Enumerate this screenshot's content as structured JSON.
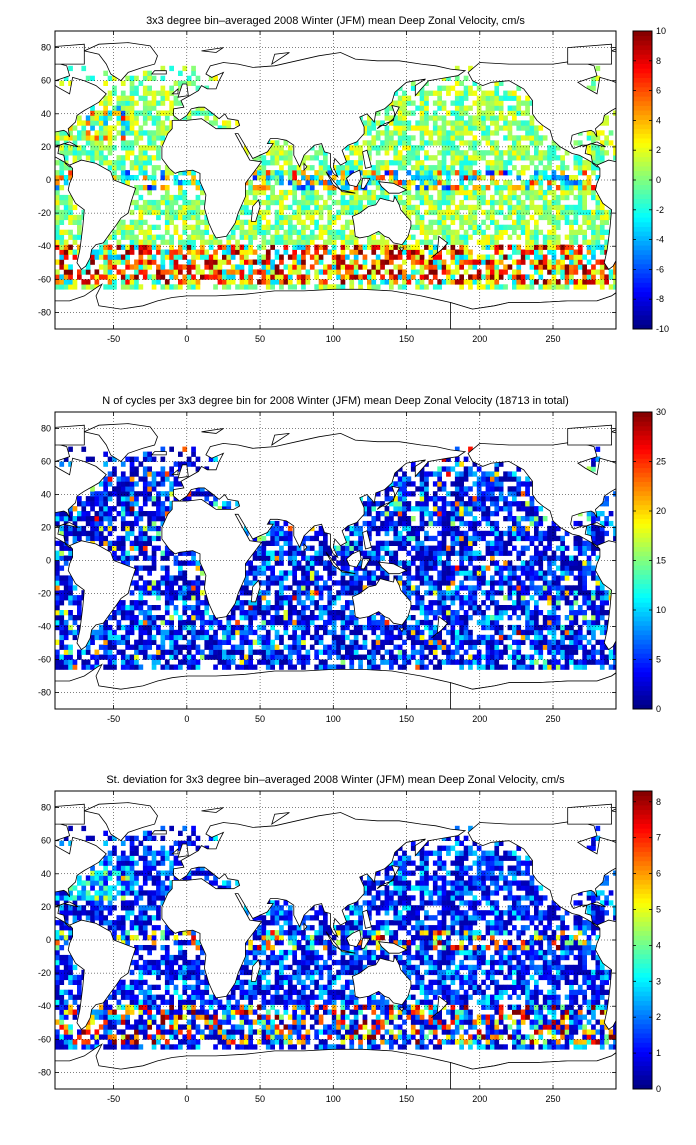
{
  "chart_data": [
    {
      "type": "heatmap",
      "title": "3x3 degree bin–averaged 2008 Winter (JFM) mean Deep Zonal Velocity, cm/s",
      "xticks": [
        -50,
        0,
        50,
        100,
        150,
        200,
        250
      ],
      "yticks": [
        80,
        60,
        40,
        20,
        0,
        -20,
        -40,
        -60,
        -80
      ],
      "xlim": [
        -90,
        293
      ],
      "ylim": [
        -90,
        90
      ],
      "grid": true,
      "bin_size_deg": 3,
      "colorbar": {
        "range": [
          -10,
          10
        ],
        "ticks": [
          10,
          8,
          6,
          4,
          2,
          0,
          -2,
          -4,
          -6,
          -8,
          -10
        ],
        "colormap": "jet"
      },
      "field": "zonal_velocity"
    },
    {
      "type": "heatmap",
      "title": "N of cycles per 3x3 degree bin for 2008 Winter (JFM) mean Deep Zonal Velocity (18713 in total)",
      "xticks": [
        -50,
        0,
        50,
        100,
        150,
        200,
        250
      ],
      "yticks": [
        80,
        60,
        40,
        20,
        0,
        -20,
        -40,
        -60,
        -80
      ],
      "xlim": [
        -90,
        293
      ],
      "ylim": [
        -90,
        90
      ],
      "grid": true,
      "bin_size_deg": 3,
      "colorbar": {
        "range": [
          0,
          30
        ],
        "ticks": [
          30,
          25,
          20,
          15,
          10,
          5,
          0
        ],
        "colormap": "jet"
      },
      "field": "cycle_count"
    },
    {
      "type": "heatmap",
      "title": "St. deviation for 3x3 degree bin–averaged 2008 Winter (JFM) mean Deep Zonal Velocity, cm/s",
      "xticks": [
        -50,
        0,
        50,
        100,
        150,
        200,
        250
      ],
      "yticks": [
        80,
        60,
        40,
        20,
        0,
        -20,
        -40,
        -60,
        -80
      ],
      "xlim": [
        -90,
        293
      ],
      "ylim": [
        -90,
        90
      ],
      "grid": true,
      "bin_size_deg": 3,
      "colorbar": {
        "range": [
          0,
          8.3
        ],
        "ticks": [
          8,
          7,
          6,
          5,
          4,
          3,
          2,
          1,
          0
        ],
        "colormap": "jet"
      },
      "field": "std_dev"
    }
  ]
}
